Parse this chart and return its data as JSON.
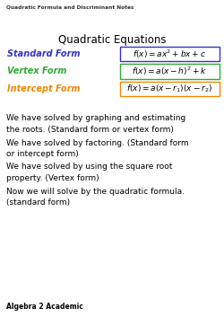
{
  "title_top": "Quadratic Formula and Discriminant Notes",
  "title_main": "Quadratic Equations",
  "background_color": "#ffffff",
  "forms": [
    {
      "label": "Standard Form",
      "label_color": "#3333cc",
      "formula": "$f(x) = ax^2 + bx + c$",
      "box_color": "#3333cc"
    },
    {
      "label": "Vertex Form",
      "label_color": "#33aa33",
      "formula": "$f(x) = a(x-h)^2 + k$",
      "box_color": "#33aa33"
    },
    {
      "label": "Intercept Form",
      "label_color": "#ee8800",
      "formula": "$f(x) = a(x-r_1)(x-r_2)$",
      "box_color": "#ee8800"
    }
  ],
  "paragraphs": [
    "We have solved by graphing and estimating\nthe roots. (Standard form or vertex form)",
    "We have solved by factoring. (Standard form\nor intercept form)",
    "We have solved by using the square root\nproperty. (Vertex form)",
    "Now we will solve by the quadratic formula.\n(standard form)"
  ],
  "footer": "Algebra 2 Academic",
  "text_color": "#000000",
  "fig_width": 2.5,
  "fig_height": 3.53,
  "dpi": 100
}
